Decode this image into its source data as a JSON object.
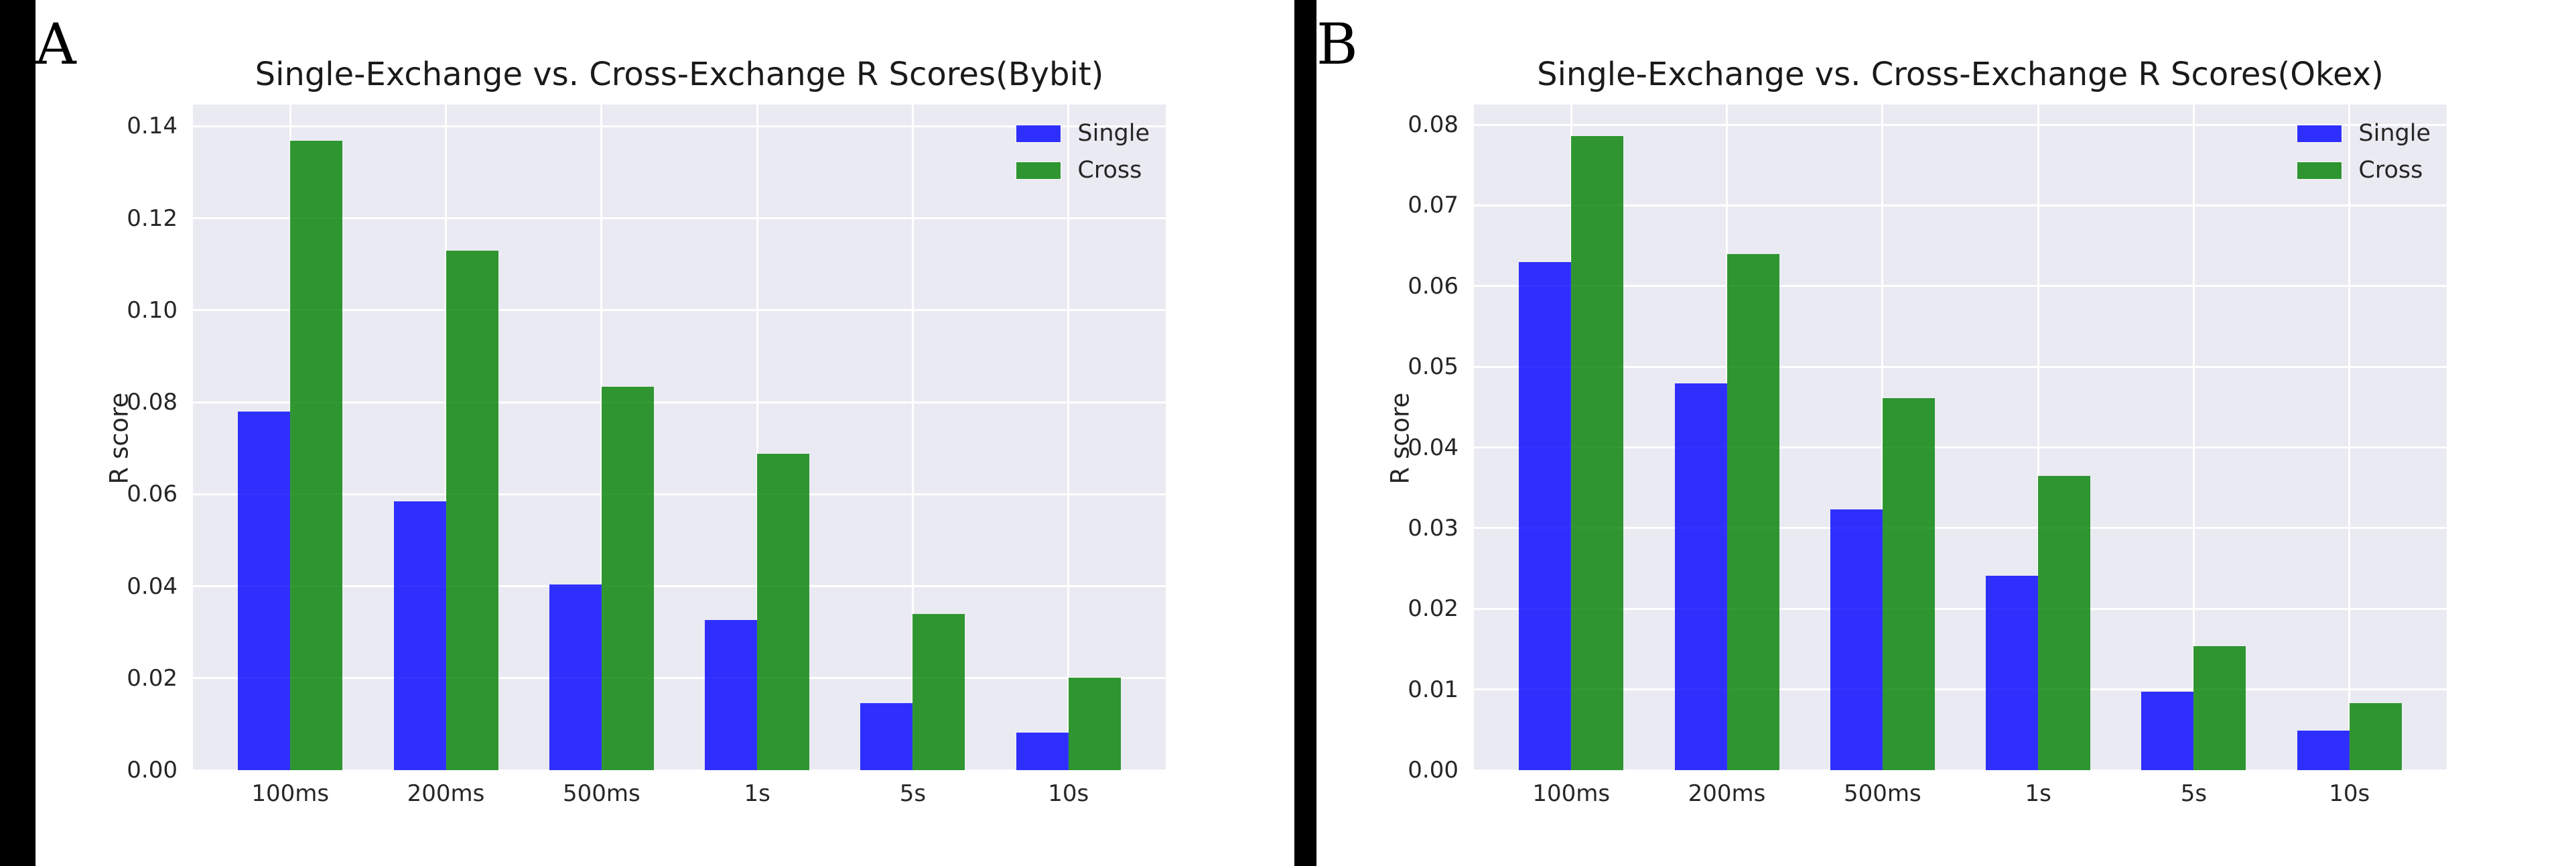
{
  "colors": {
    "figure_bg": "#ffffff",
    "plot_bg": "#eaeaf2",
    "gridline": "#ffffff",
    "divider": "#000000",
    "single_bar": "rgba(0,0,255,0.8)",
    "cross_bar": "rgba(0,128,0,0.8)",
    "text": "#262626"
  },
  "chart_data": [
    {
      "type": "bar",
      "panel_label": "A",
      "title": "Single-Exchange vs. Cross-Exchange R Scores(Bybit)",
      "xlabel": "",
      "ylabel": "R score",
      "categories": [
        "100ms",
        "200ms",
        "500ms",
        "1s",
        "5s",
        "10s"
      ],
      "series": [
        {
          "name": "Single",
          "color": "rgba(0,0,255,0.8)",
          "values": [
            0.078,
            0.0585,
            0.0403,
            0.0327,
            0.0145,
            0.0082
          ]
        },
        {
          "name": "Cross",
          "color": "rgba(0,128,0,0.8)",
          "values": [
            0.1368,
            0.113,
            0.0833,
            0.0688,
            0.0339,
            0.0201
          ]
        }
      ],
      "ylim": [
        0,
        0.1447
      ],
      "yticks": [
        "0.00",
        "0.02",
        "0.04",
        "0.06",
        "0.08",
        "0.10",
        "0.12",
        "0.14"
      ],
      "grid": true,
      "legend_position": "upper-right"
    },
    {
      "type": "bar",
      "panel_label": "B",
      "title": "Single-Exchange vs. Cross-Exchange R Scores(Okex)",
      "xlabel": "",
      "ylabel": "R score",
      "categories": [
        "100ms",
        "200ms",
        "500ms",
        "1s",
        "5s",
        "10s"
      ],
      "series": [
        {
          "name": "Single",
          "color": "rgba(0,0,255,0.8)",
          "values": [
            0.063,
            0.0479,
            0.0323,
            0.0241,
            0.0097,
            0.0049
          ]
        },
        {
          "name": "Cross",
          "color": "rgba(0,128,0,0.8)",
          "values": [
            0.0786,
            0.064,
            0.0461,
            0.0365,
            0.0154,
            0.0083
          ]
        }
      ],
      "ylim": [
        0,
        0.0825
      ],
      "yticks": [
        "0.00",
        "0.01",
        "0.02",
        "0.03",
        "0.04",
        "0.05",
        "0.06",
        "0.07",
        "0.08"
      ],
      "grid": true,
      "legend_position": "upper-right"
    }
  ]
}
